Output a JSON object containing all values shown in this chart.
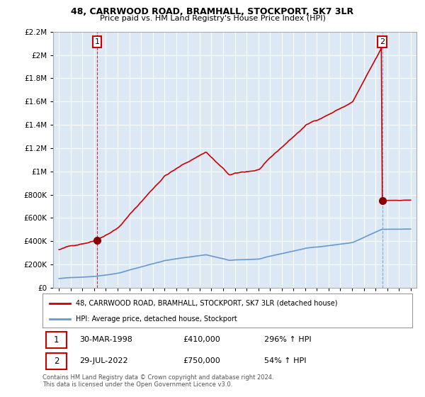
{
  "title": "48, CARRWOOD ROAD, BRAMHALL, STOCKPORT, SK7 3LR",
  "subtitle": "Price paid vs. HM Land Registry's House Price Index (HPI)",
  "legend_line1": "48, CARRWOOD ROAD, BRAMHALL, STOCKPORT, SK7 3LR (detached house)",
  "legend_line2": "HPI: Average price, detached house, Stockport",
  "footnote": "Contains HM Land Registry data © Crown copyright and database right 2024.\nThis data is licensed under the Open Government Licence v3.0.",
  "sale1_date": "30-MAR-1998",
  "sale1_price": "£410,000",
  "sale1_hpi": "296% ↑ HPI",
  "sale2_date": "29-JUL-2022",
  "sale2_price": "£750,000",
  "sale2_hpi": "54% ↑ HPI",
  "hpi_color": "#6699cc",
  "price_color": "#cc0000",
  "ylim_max": 2200000,
  "ylim_min": 0,
  "background_color": "#dce9f5",
  "grid_color": "#ffffff",
  "sale1_price_val": 410000,
  "sale2_price_val": 750000,
  "sale1_t": 1998.25,
  "sale2_t": 2022.58
}
